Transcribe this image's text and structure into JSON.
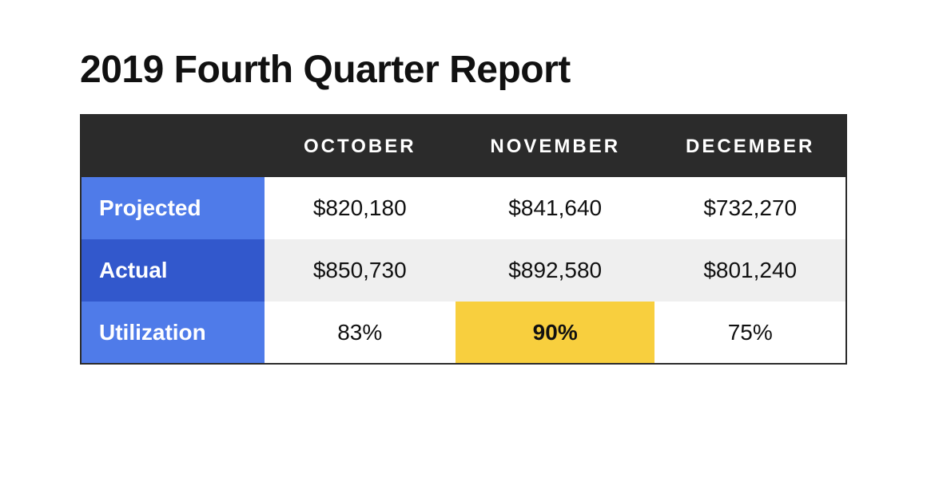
{
  "title": "2019 Fourth Quarter Report",
  "table": {
    "type": "table",
    "columns": [
      "OCTOBER",
      "NOVEMBER",
      "DECEMBER"
    ],
    "rows": [
      {
        "label": "Projected",
        "values": [
          "$820,180",
          "$841,640",
          "$732,270"
        ],
        "bg": "#ffffff"
      },
      {
        "label": "Actual",
        "values": [
          "$850,730",
          "$892,580",
          "$801,240"
        ],
        "bg": "#efefef"
      },
      {
        "label": "Utilization",
        "values": [
          "83%",
          "90%",
          "75%"
        ],
        "bg": "#ffffff"
      }
    ],
    "highlight": {
      "row": 2,
      "col": 1,
      "bg": "#f8cf3e",
      "bold": true
    },
    "header_row_bg": "#2b2b2b",
    "header_row_fg": "#ffffff",
    "row_header_bg": [
      "#4f7be9",
      "#3258cc",
      "#4f7be9"
    ],
    "row_header_fg": "#ffffff",
    "border_color": "#2b2b2b",
    "cell_text_color": "#111111",
    "column_header_fontsize": 24,
    "cell_fontsize": 28,
    "title_fontsize": 48,
    "letter_spacing_header": 3
  }
}
